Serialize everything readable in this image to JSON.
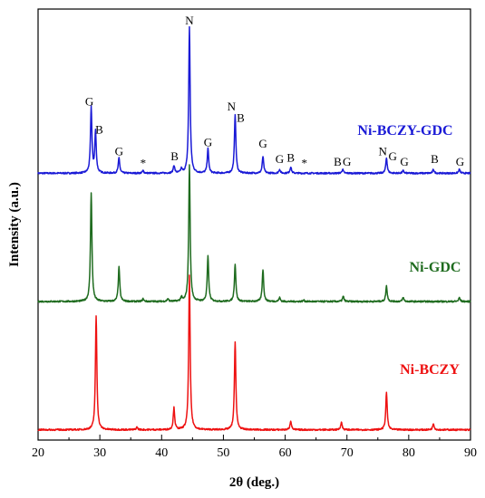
{
  "chart_data": {
    "type": "line",
    "xlabel": "2θ (deg.)",
    "ylabel": "Intensity (a.u.)",
    "xlim": [
      20,
      90
    ],
    "xticks": [
      20,
      30,
      40,
      50,
      60,
      70,
      80,
      90
    ],
    "yticks": "none",
    "grid": false,
    "legend": "inline-labels-right",
    "series": [
      {
        "name": "Ni-BCZY-GDC",
        "color": "#1a1ad6",
        "baseline": 1.0,
        "peaks": [
          {
            "x": 28.6,
            "h": 0.51
          },
          {
            "x": 29.3,
            "h": 0.32
          },
          {
            "x": 33.1,
            "h": 0.12
          },
          {
            "x": 37.0,
            "h": 0.02
          },
          {
            "x": 42.0,
            "h": 0.06
          },
          {
            "x": 43.2,
            "h": 0.03
          },
          {
            "x": 44.5,
            "h": 1.14
          },
          {
            "x": 47.5,
            "h": 0.19
          },
          {
            "x": 51.9,
            "h": 0.46
          },
          {
            "x": 56.4,
            "h": 0.13
          },
          {
            "x": 59.1,
            "h": 0.03
          },
          {
            "x": 60.9,
            "h": 0.05
          },
          {
            "x": 69.3,
            "h": 0.03
          },
          {
            "x": 76.4,
            "h": 0.12
          },
          {
            "x": 79.1,
            "h": 0.02
          },
          {
            "x": 84.0,
            "h": 0.03
          },
          {
            "x": 88.2,
            "h": 0.03
          }
        ]
      },
      {
        "name": "Ni-GDC",
        "color": "#1e6b1e",
        "baseline": 0.0,
        "peaks": [
          {
            "x": 28.6,
            "h": 0.85
          },
          {
            "x": 33.1,
            "h": 0.27
          },
          {
            "x": 37.0,
            "h": 0.02
          },
          {
            "x": 41.0,
            "h": 0.02
          },
          {
            "x": 43.2,
            "h": 0.03
          },
          {
            "x": 44.5,
            "h": 1.06
          },
          {
            "x": 47.5,
            "h": 0.35
          },
          {
            "x": 51.9,
            "h": 0.29
          },
          {
            "x": 56.4,
            "h": 0.25
          },
          {
            "x": 59.1,
            "h": 0.03
          },
          {
            "x": 63.0,
            "h": 0.01
          },
          {
            "x": 69.4,
            "h": 0.04
          },
          {
            "x": 76.4,
            "h": 0.12
          },
          {
            "x": 79.1,
            "h": 0.03
          },
          {
            "x": 88.2,
            "h": 0.03
          }
        ]
      },
      {
        "name": "Ni-BCZY",
        "color": "#ee1111",
        "baseline": -1.0,
        "peaks": [
          {
            "x": 29.4,
            "h": 0.89
          },
          {
            "x": 36.0,
            "h": 0.02
          },
          {
            "x": 42.0,
            "h": 0.17
          },
          {
            "x": 44.5,
            "h": 1.2
          },
          {
            "x": 51.9,
            "h": 0.69
          },
          {
            "x": 60.9,
            "h": 0.07
          },
          {
            "x": 69.1,
            "h": 0.06
          },
          {
            "x": 76.4,
            "h": 0.29
          },
          {
            "x": 84.0,
            "h": 0.05
          }
        ]
      }
    ],
    "annotations": [
      {
        "text": "G",
        "x": 28.3,
        "y": 1.53
      },
      {
        "text": "B",
        "x": 29.9,
        "y": 1.31
      },
      {
        "text": "G",
        "x": 33.1,
        "y": 1.14
      },
      {
        "text": "*",
        "x": 37.0,
        "y": 1.05
      },
      {
        "text": "B",
        "x": 42.1,
        "y": 1.1
      },
      {
        "text": "N",
        "x": 44.5,
        "y": 2.16
      },
      {
        "text": "G",
        "x": 47.5,
        "y": 1.21
      },
      {
        "text": "N",
        "x": 51.3,
        "y": 1.49
      },
      {
        "text": "B",
        "x": 52.8,
        "y": 1.4
      },
      {
        "text": "G",
        "x": 56.4,
        "y": 1.2
      },
      {
        "text": "G",
        "x": 59.1,
        "y": 1.08
      },
      {
        "text": "B",
        "x": 60.9,
        "y": 1.09
      },
      {
        "text": "*",
        "x": 63.1,
        "y": 1.05
      },
      {
        "text": "B",
        "x": 68.5,
        "y": 1.06
      },
      {
        "text": "G",
        "x": 70.0,
        "y": 1.06
      },
      {
        "text": "N",
        "x": 75.8,
        "y": 1.14
      },
      {
        "text": "G",
        "x": 77.4,
        "y": 1.1
      },
      {
        "text": "G",
        "x": 79.3,
        "y": 1.06
      },
      {
        "text": "B",
        "x": 84.2,
        "y": 1.08
      },
      {
        "text": "G",
        "x": 88.3,
        "y": 1.06
      }
    ]
  }
}
